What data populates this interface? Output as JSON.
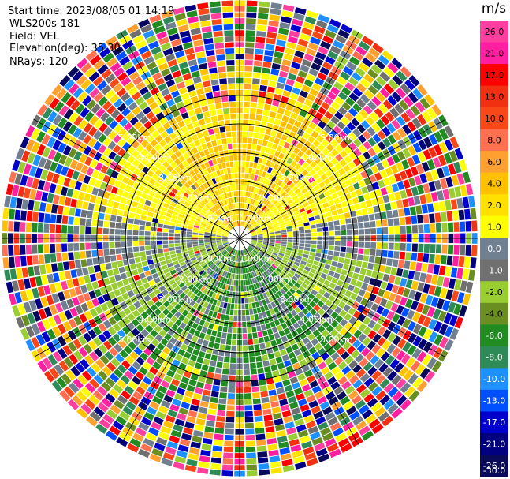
{
  "header": {
    "start_time": "Start time: 2023/08/05 01:14:19",
    "instrument": "WLS200s-181",
    "field": "Field: VEL",
    "elevation": "Elevation(deg): 35.30",
    "nrays": "NRays: 120"
  },
  "colorbar": {
    "unit": "m/s",
    "ticks": [
      "26.0",
      "21.0",
      "17.0",
      "13.0",
      "10.0",
      "8.0",
      "6.0",
      "4.0",
      "2.0",
      "1.0",
      "0.0",
      "-1.0",
      "-2.0",
      "-4.0",
      "-6.0",
      "-8.0",
      "-10.0",
      "-13.0",
      "-17.0",
      "-21.0",
      "-26.0",
      "-30.0"
    ],
    "colors": [
      "#ff3fa0",
      "#ff1fa0",
      "#ff0000",
      "#f03010",
      "#f84818",
      "#ff7050",
      "#ffa030",
      "#ffc000",
      "#ffe000",
      "#ffff00",
      "#708090",
      "#707070",
      "#9acd32",
      "#6b8e23",
      "#228b22",
      "#2e8b57",
      "#1e90ff",
      "#0050ff",
      "#0000cd",
      "#000080",
      "#0a0a5a"
    ]
  },
  "chart_data": {
    "type": "ppi",
    "field": "VEL",
    "units": "m/s",
    "elevation_deg": 35.3,
    "n_rays": 120,
    "max_range_km": 5.0,
    "range_rings_km": [
      1,
      2,
      3,
      4,
      5
    ],
    "ring_labels": [
      "1.00km",
      "2.00km",
      "3.00km",
      "4.00km",
      "5.00km"
    ],
    "spoke_azimuths_deg": [
      0,
      30,
      60,
      90,
      120,
      150,
      180,
      210,
      240,
      270,
      300,
      330
    ],
    "velocity_pattern": {
      "north_sector": "positive 1 to 6 m/s (yellow/orange)",
      "south_sector": "negative -2 to -8 m/s (green)",
      "east_west_bands": "near 0 m/s (gray)",
      "outer_range_km": "beyond ~3.5 km noisy, all colors"
    }
  }
}
